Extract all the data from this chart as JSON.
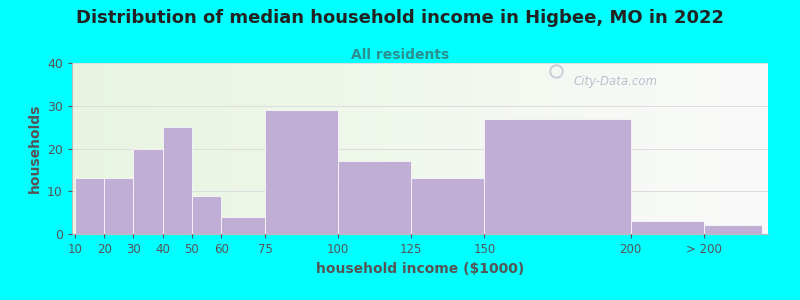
{
  "title": "Distribution of median household income in Higbee, MO in 2022",
  "subtitle": "All residents",
  "xlabel": "household income ($1000)",
  "ylabel": "households",
  "background_outer": "#00FFFF",
  "bar_color": "#c0aed4",
  "categories": [
    "10",
    "20",
    "30",
    "40",
    "50",
    "60",
    "75",
    "100",
    "125",
    "150",
    "200",
    "> 200"
  ],
  "values": [
    13,
    13,
    20,
    25,
    9,
    4,
    29,
    17,
    13,
    27,
    3,
    2
  ],
  "bar_widths": [
    1,
    1,
    1,
    1,
    1,
    1,
    2.5,
    2.5,
    2.5,
    2.5,
    5,
    5
  ],
  "bar_lefts": [
    10,
    20,
    30,
    40,
    50,
    60,
    75,
    100,
    125,
    150,
    200,
    230
  ],
  "xtick_positions": [
    10,
    20,
    30,
    40,
    50,
    60,
    75,
    100,
    125,
    150,
    200,
    230
  ],
  "xtick_labels": [
    "10",
    "20",
    "30",
    "40",
    "50",
    "60",
    "75",
    "100",
    "125",
    "150",
    "200",
    "> 200"
  ],
  "xlim": [
    9,
    250
  ],
  "ylim": [
    0,
    40
  ],
  "yticks": [
    0,
    10,
    20,
    30,
    40
  ],
  "watermark": "City-Data.com",
  "title_fontsize": 13,
  "subtitle_fontsize": 10,
  "axis_label_fontsize": 10,
  "title_color": "#222222",
  "subtitle_color": "#2a9090",
  "axis_label_color": "#555555"
}
